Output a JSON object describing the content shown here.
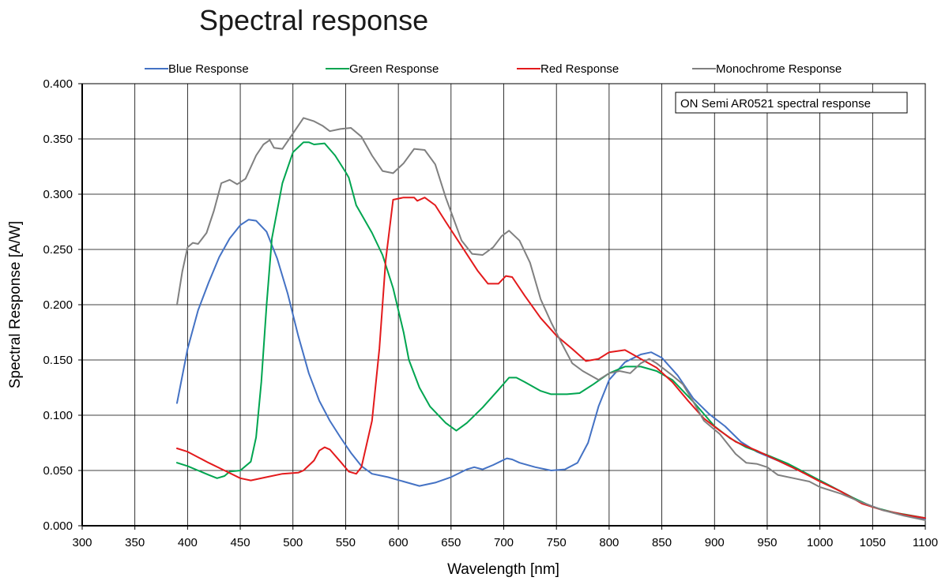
{
  "chart_data": {
    "type": "line",
    "title": "Spectral response",
    "xlabel": "Wavelength [nm]",
    "ylabel": "Spectral Response [A/W]",
    "xlim": [
      300,
      1100
    ],
    "ylim": [
      0,
      0.4
    ],
    "x_ticks": [
      "300",
      "350",
      "400",
      "450",
      "500",
      "550",
      "600",
      "650",
      "700",
      "750",
      "800",
      "850",
      "900",
      "950",
      "1000",
      "1050",
      "1100"
    ],
    "y_ticks": [
      "0.000",
      "0.050",
      "0.100",
      "0.150",
      "0.200",
      "0.250",
      "0.300",
      "0.350",
      "0.400"
    ],
    "grid": true,
    "legend_position": "top",
    "annotation": "ON Semi AR0521 spectral response",
    "series": [
      {
        "name": "Blue Response",
        "color": "#4472c4",
        "points": [
          [
            390,
            0.111
          ],
          [
            400,
            0.16
          ],
          [
            410,
            0.195
          ],
          [
            420,
            0.22
          ],
          [
            430,
            0.243
          ],
          [
            440,
            0.26
          ],
          [
            450,
            0.272
          ],
          [
            458,
            0.277
          ],
          [
            465,
            0.276
          ],
          [
            475,
            0.266
          ],
          [
            485,
            0.242
          ],
          [
            495,
            0.21
          ],
          [
            505,
            0.172
          ],
          [
            515,
            0.138
          ],
          [
            525,
            0.113
          ],
          [
            535,
            0.095
          ],
          [
            545,
            0.08
          ],
          [
            555,
            0.066
          ],
          [
            565,
            0.054
          ],
          [
            575,
            0.047
          ],
          [
            590,
            0.044
          ],
          [
            605,
            0.04
          ],
          [
            620,
            0.036
          ],
          [
            635,
            0.039
          ],
          [
            650,
            0.044
          ],
          [
            665,
            0.051
          ],
          [
            672,
            0.053
          ],
          [
            680,
            0.051
          ],
          [
            690,
            0.055
          ],
          [
            703,
            0.061
          ],
          [
            708,
            0.06
          ],
          [
            715,
            0.057
          ],
          [
            730,
            0.053
          ],
          [
            745,
            0.05
          ],
          [
            758,
            0.051
          ],
          [
            770,
            0.057
          ],
          [
            780,
            0.075
          ],
          [
            790,
            0.108
          ],
          [
            800,
            0.132
          ],
          [
            815,
            0.148
          ],
          [
            830,
            0.155
          ],
          [
            840,
            0.157
          ],
          [
            850,
            0.152
          ],
          [
            865,
            0.136
          ],
          [
            880,
            0.115
          ],
          [
            895,
            0.101
          ],
          [
            910,
            0.09
          ],
          [
            925,
            0.076
          ],
          [
            940,
            0.067
          ],
          [
            960,
            0.059
          ],
          [
            980,
            0.05
          ],
          [
            1000,
            0.041
          ],
          [
            1020,
            0.031
          ],
          [
            1040,
            0.021
          ],
          [
            1060,
            0.014
          ],
          [
            1080,
            0.01
          ],
          [
            1100,
            0.006
          ]
        ]
      },
      {
        "name": "Green Response",
        "color": "#00a550",
        "points": [
          [
            390,
            0.057
          ],
          [
            400,
            0.054
          ],
          [
            410,
            0.05
          ],
          [
            420,
            0.046
          ],
          [
            428,
            0.043
          ],
          [
            435,
            0.045
          ],
          [
            440,
            0.049
          ],
          [
            450,
            0.05
          ],
          [
            460,
            0.058
          ],
          [
            465,
            0.08
          ],
          [
            470,
            0.13
          ],
          [
            475,
            0.2
          ],
          [
            480,
            0.26
          ],
          [
            490,
            0.31
          ],
          [
            500,
            0.338
          ],
          [
            510,
            0.347
          ],
          [
            515,
            0.347
          ],
          [
            520,
            0.345
          ],
          [
            530,
            0.346
          ],
          [
            540,
            0.335
          ],
          [
            550,
            0.32
          ],
          [
            553,
            0.315
          ],
          [
            560,
            0.29
          ],
          [
            575,
            0.265
          ],
          [
            585,
            0.245
          ],
          [
            595,
            0.215
          ],
          [
            605,
            0.175
          ],
          [
            610,
            0.15
          ],
          [
            620,
            0.125
          ],
          [
            630,
            0.108
          ],
          [
            645,
            0.093
          ],
          [
            655,
            0.086
          ],
          [
            665,
            0.093
          ],
          [
            680,
            0.107
          ],
          [
            695,
            0.123
          ],
          [
            705,
            0.134
          ],
          [
            712,
            0.134
          ],
          [
            720,
            0.13
          ],
          [
            735,
            0.122
          ],
          [
            745,
            0.119
          ],
          [
            760,
            0.119
          ],
          [
            772,
            0.12
          ],
          [
            785,
            0.128
          ],
          [
            800,
            0.138
          ],
          [
            815,
            0.144
          ],
          [
            830,
            0.144
          ],
          [
            845,
            0.14
          ],
          [
            860,
            0.132
          ],
          [
            880,
            0.112
          ],
          [
            900,
            0.09
          ],
          [
            915,
            0.079
          ],
          [
            930,
            0.071
          ],
          [
            950,
            0.064
          ],
          [
            970,
            0.056
          ],
          [
            990,
            0.046
          ],
          [
            1010,
            0.036
          ],
          [
            1030,
            0.026
          ],
          [
            1050,
            0.017
          ],
          [
            1070,
            0.012
          ],
          [
            1100,
            0.007
          ]
        ]
      },
      {
        "name": "Red Response",
        "color": "#e31a1c",
        "points": [
          [
            390,
            0.07
          ],
          [
            400,
            0.067
          ],
          [
            410,
            0.062
          ],
          [
            420,
            0.057
          ],
          [
            435,
            0.05
          ],
          [
            450,
            0.043
          ],
          [
            460,
            0.041
          ],
          [
            475,
            0.044
          ],
          [
            490,
            0.047
          ],
          [
            505,
            0.048
          ],
          [
            510,
            0.05
          ],
          [
            520,
            0.059
          ],
          [
            525,
            0.068
          ],
          [
            530,
            0.071
          ],
          [
            535,
            0.069
          ],
          [
            545,
            0.058
          ],
          [
            553,
            0.049
          ],
          [
            560,
            0.047
          ],
          [
            565,
            0.053
          ],
          [
            575,
            0.095
          ],
          [
            582,
            0.16
          ],
          [
            588,
            0.24
          ],
          [
            595,
            0.295
          ],
          [
            605,
            0.297
          ],
          [
            615,
            0.297
          ],
          [
            618,
            0.294
          ],
          [
            625,
            0.297
          ],
          [
            635,
            0.29
          ],
          [
            645,
            0.275
          ],
          [
            660,
            0.253
          ],
          [
            675,
            0.231
          ],
          [
            685,
            0.219
          ],
          [
            695,
            0.219
          ],
          [
            702,
            0.226
          ],
          [
            708,
            0.225
          ],
          [
            720,
            0.208
          ],
          [
            735,
            0.188
          ],
          [
            750,
            0.172
          ],
          [
            765,
            0.16
          ],
          [
            778,
            0.149
          ],
          [
            790,
            0.151
          ],
          [
            800,
            0.157
          ],
          [
            815,
            0.159
          ],
          [
            830,
            0.151
          ],
          [
            845,
            0.143
          ],
          [
            860,
            0.13
          ],
          [
            875,
            0.113
          ],
          [
            890,
            0.097
          ],
          [
            905,
            0.086
          ],
          [
            920,
            0.076
          ],
          [
            940,
            0.068
          ],
          [
            960,
            0.059
          ],
          [
            980,
            0.05
          ],
          [
            1000,
            0.04
          ],
          [
            1020,
            0.031
          ],
          [
            1040,
            0.02
          ],
          [
            1060,
            0.014
          ],
          [
            1080,
            0.01
          ],
          [
            1100,
            0.007
          ]
        ]
      },
      {
        "name": "Monochrome Response",
        "color": "#808080",
        "points": [
          [
            390,
            0.2
          ],
          [
            395,
            0.23
          ],
          [
            400,
            0.252
          ],
          [
            405,
            0.256
          ],
          [
            410,
            0.255
          ],
          [
            418,
            0.265
          ],
          [
            425,
            0.285
          ],
          [
            432,
            0.31
          ],
          [
            440,
            0.313
          ],
          [
            447,
            0.309
          ],
          [
            455,
            0.314
          ],
          [
            465,
            0.335
          ],
          [
            472,
            0.345
          ],
          [
            478,
            0.349
          ],
          [
            482,
            0.342
          ],
          [
            490,
            0.341
          ],
          [
            500,
            0.355
          ],
          [
            510,
            0.369
          ],
          [
            520,
            0.366
          ],
          [
            528,
            0.362
          ],
          [
            535,
            0.357
          ],
          [
            545,
            0.359
          ],
          [
            555,
            0.36
          ],
          [
            565,
            0.352
          ],
          [
            575,
            0.335
          ],
          [
            585,
            0.321
          ],
          [
            595,
            0.319
          ],
          [
            605,
            0.328
          ],
          [
            615,
            0.341
          ],
          [
            625,
            0.34
          ],
          [
            635,
            0.327
          ],
          [
            645,
            0.297
          ],
          [
            660,
            0.258
          ],
          [
            670,
            0.246
          ],
          [
            680,
            0.245
          ],
          [
            690,
            0.252
          ],
          [
            698,
            0.262
          ],
          [
            705,
            0.267
          ],
          [
            715,
            0.258
          ],
          [
            725,
            0.238
          ],
          [
            735,
            0.205
          ],
          [
            745,
            0.184
          ],
          [
            755,
            0.165
          ],
          [
            765,
            0.147
          ],
          [
            775,
            0.14
          ],
          [
            790,
            0.132
          ],
          [
            800,
            0.138
          ],
          [
            810,
            0.14
          ],
          [
            820,
            0.138
          ],
          [
            830,
            0.147
          ],
          [
            838,
            0.151
          ],
          [
            845,
            0.147
          ],
          [
            860,
            0.136
          ],
          [
            870,
            0.128
          ],
          [
            880,
            0.112
          ],
          [
            890,
            0.095
          ],
          [
            905,
            0.083
          ],
          [
            920,
            0.065
          ],
          [
            930,
            0.057
          ],
          [
            940,
            0.056
          ],
          [
            950,
            0.053
          ],
          [
            960,
            0.046
          ],
          [
            975,
            0.043
          ],
          [
            990,
            0.04
          ],
          [
            1000,
            0.035
          ],
          [
            1020,
            0.029
          ],
          [
            1040,
            0.021
          ],
          [
            1060,
            0.014
          ],
          [
            1080,
            0.009
          ],
          [
            1100,
            0.005
          ]
        ]
      }
    ]
  }
}
